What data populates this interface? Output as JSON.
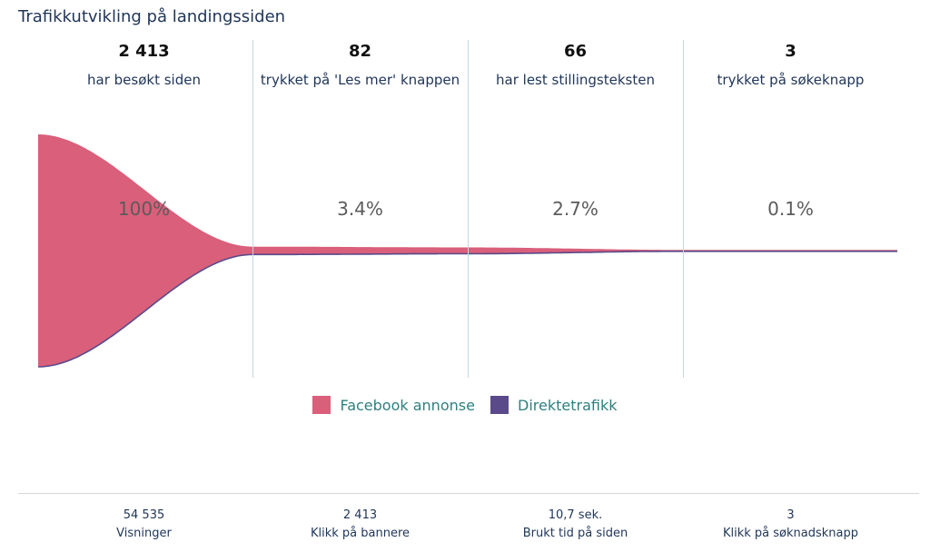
{
  "title": "Trafikkutvikling på landingssiden",
  "stages": [
    {
      "count": "2 413",
      "label": "har besøkt siden",
      "percent": "100%"
    },
    {
      "count": "82",
      "label": "trykket på 'Les mer' knappen",
      "percent": "3.4%"
    },
    {
      "count": "66",
      "label": "har lest stillingsteksten",
      "percent": "2.7%"
    },
    {
      "count": "3",
      "label": "trykket på søkeknapp",
      "percent": "0.1%"
    }
  ],
  "legend": [
    {
      "label": "Facebook annonse",
      "color": "#d95f7b"
    },
    {
      "label": "Direktetrafikk",
      "color": "#5a4a8a"
    }
  ],
  "bottom_stats": [
    {
      "value": "54 535",
      "label": "Visninger"
    },
    {
      "value": "2 413",
      "label": "Klikk på bannere"
    },
    {
      "value": "10,7 sek.",
      "label": "Brukt tid på siden"
    },
    {
      "value": "3",
      "label": "Klikk på søknadsknapp"
    }
  ],
  "chart_data": {
    "type": "area",
    "categories": [
      "har besøkt siden",
      "trykket på 'Les mer' knappen",
      "har lest stillingsteksten",
      "trykket på søkeknapp"
    ],
    "series": [
      {
        "name": "Facebook annonse",
        "values": [
          2413,
          82,
          66,
          3
        ],
        "color": "#d95f7b"
      },
      {
        "name": "Direktetrafikk",
        "values": [
          0,
          0,
          0,
          0
        ],
        "color": "#5a4a8a"
      }
    ],
    "percent_labels": [
      "100%",
      "3.4%",
      "2.7%",
      "0.1%"
    ]
  }
}
